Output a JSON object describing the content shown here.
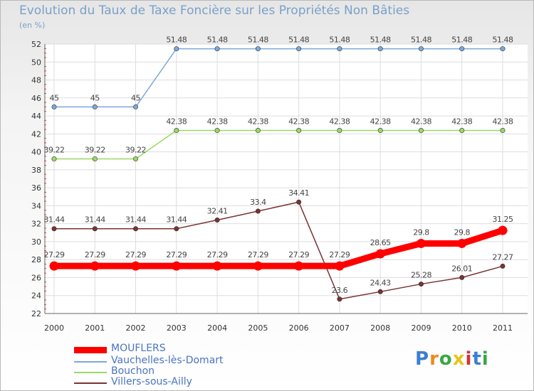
{
  "chart_data": {
    "type": "line",
    "title": "Evolution du Taux de Taxe Foncière sur les Propriétés Non Bâties",
    "subtitle": "(en %)",
    "xlabel": "",
    "ylabel": "",
    "ylim": [
      22,
      52
    ],
    "yticks": [
      "22",
      "24",
      "26",
      "28",
      "30",
      "32",
      "34",
      "36",
      "38",
      "40",
      "42",
      "44",
      "46",
      "48",
      "50",
      "52"
    ],
    "categories": [
      "2000",
      "2001",
      "2002",
      "2003",
      "2004",
      "2005",
      "2006",
      "2007",
      "2008",
      "2009",
      "2010",
      "2011"
    ],
    "grid": true,
    "series": [
      {
        "name": "MOUFLERS",
        "color": "#ff0000",
        "values": [
          27.29,
          27.29,
          27.29,
          27.29,
          27.29,
          27.29,
          27.29,
          27.29,
          28.65,
          29.8,
          29.8,
          31.25
        ],
        "labels": [
          "27.29",
          "27.29",
          "27.29",
          "27.29",
          "27.29",
          "27.29",
          "27.29",
          "27.29",
          "28.65",
          "29.8",
          "29.8",
          "31.25"
        ]
      },
      {
        "name": "Vauchelles-lès-Domart",
        "color": "#7ba9d9",
        "values": [
          45,
          45,
          45,
          51.48,
          51.48,
          51.48,
          51.48,
          51.48,
          51.48,
          51.48,
          51.48,
          51.48
        ],
        "labels": [
          "45",
          "45",
          "45",
          "51.48",
          "51.48",
          "51.48",
          "51.48",
          "51.48",
          "51.48",
          "51.48",
          "51.48",
          "51.48"
        ]
      },
      {
        "name": "Bouchon",
        "color": "#99d966",
        "values": [
          39.22,
          39.22,
          39.22,
          42.38,
          42.38,
          42.38,
          42.38,
          42.38,
          42.38,
          42.38,
          42.38,
          42.38
        ],
        "labels": [
          "39.22",
          "39.22",
          "39.22",
          "42.38",
          "42.38",
          "42.38",
          "42.38",
          "42.38",
          "42.38",
          "42.38",
          "42.38",
          "42.38"
        ]
      },
      {
        "name": "Villers-sous-Ailly",
        "color": "#7a3333",
        "values": [
          31.44,
          31.44,
          31.44,
          31.44,
          32.41,
          33.4,
          34.41,
          23.6,
          24.43,
          25.28,
          26.01,
          27.27
        ],
        "labels": [
          "31.44",
          "31.44",
          "31.44",
          "31.44",
          "32.41",
          "33.4",
          "34.41",
          "23.6",
          "24.43",
          "25.28",
          "26.01",
          "27.27"
        ]
      }
    ]
  },
  "legend": {
    "items": [
      {
        "label": "MOUFLERS",
        "color": "#ff0000"
      },
      {
        "label": "Vauchelles-lès-Domart",
        "color": "#7ba9d9"
      },
      {
        "label": "Bouchon",
        "color": "#99d966"
      },
      {
        "label": "Villers-sous-Ailly",
        "color": "#7a3333"
      }
    ]
  },
  "logo": {
    "letters": [
      "P",
      "r",
      "o",
      "x",
      "i",
      "t",
      "i"
    ],
    "colors": [
      "#3a7fd5",
      "#ee8a1c",
      "#39a845",
      "#e9c31a",
      "#d23535",
      "#3a7fd5",
      "#39a845"
    ]
  }
}
